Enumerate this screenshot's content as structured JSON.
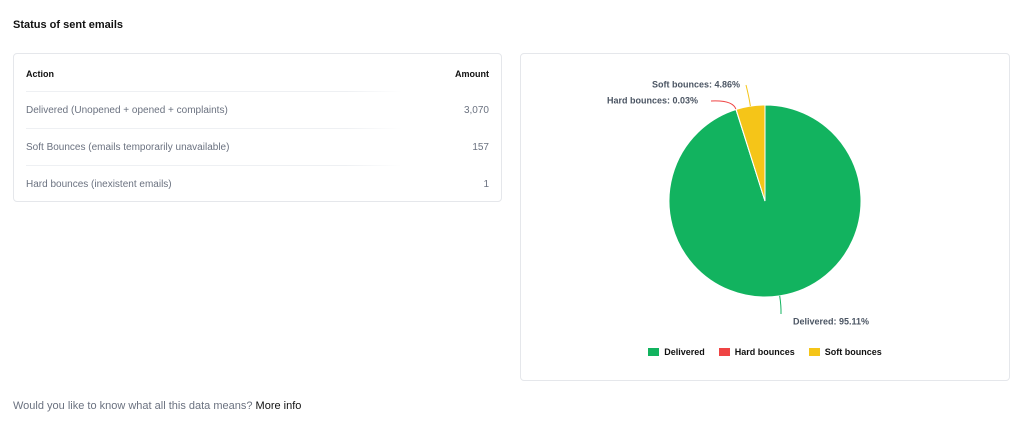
{
  "page": {
    "title": "Status of sent emails",
    "footer_text": "Would you like to know what all this data means?",
    "footer_link": "More info"
  },
  "table": {
    "col_action": "Action",
    "col_amount": "Amount",
    "rows": [
      {
        "action": "Delivered (Unopened + opened + complaints)",
        "amount": "3,070"
      },
      {
        "action": "Soft Bounces (emails temporarily unavailable)",
        "amount": "157"
      },
      {
        "action": "Hard bounces (inexistent emails)",
        "amount": "1"
      }
    ]
  },
  "chart_data": {
    "type": "pie",
    "title": "",
    "slices": [
      {
        "name": "Delivered",
        "value": 95.11,
        "label": "Delivered: 95.11%",
        "color": "#12b35f"
      },
      {
        "name": "Hard bounces",
        "value": 0.03,
        "label": "Hard bounces: 0.03%",
        "color": "#ef4444"
      },
      {
        "name": "Soft bounces",
        "value": 4.86,
        "label": "Soft bounces: 4.86%",
        "color": "#f5c518"
      }
    ],
    "legend": {
      "position": "bottom",
      "items": [
        "Delivered",
        "Hard bounces",
        "Soft bounces"
      ]
    }
  }
}
